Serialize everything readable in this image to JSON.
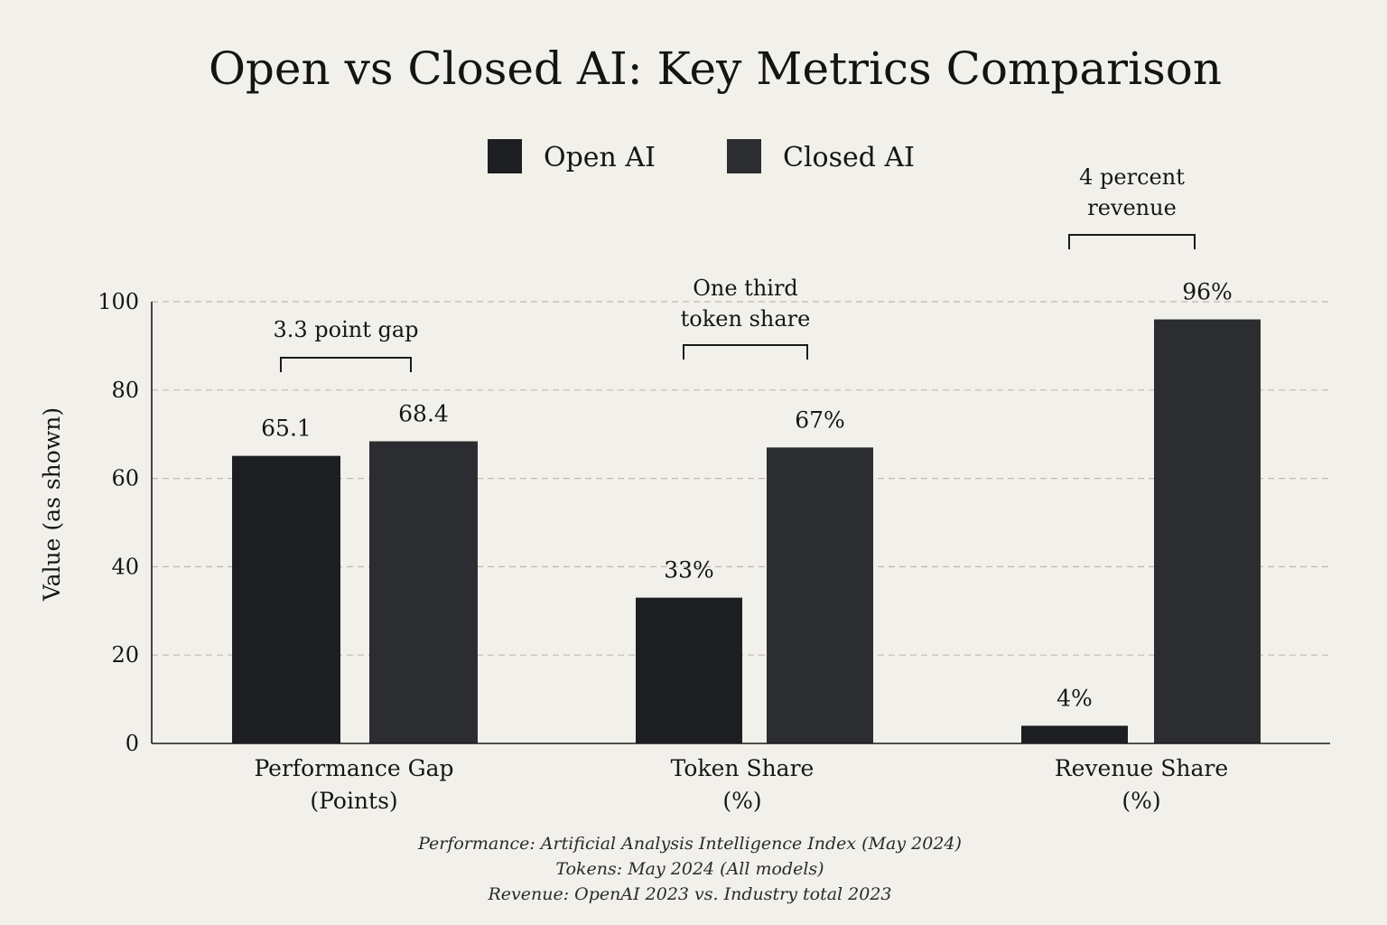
{
  "chart_data": {
    "type": "bar",
    "title": "Open vs Closed AI: Key Metrics Comparison",
    "ylabel": "Value (as shown)",
    "xlabel": "",
    "ylim": [
      0,
      100
    ],
    "yticks": [
      "0",
      "20",
      "40",
      "60",
      "80",
      "100"
    ],
    "grid": true,
    "legend_position": "top-center",
    "categories": [
      [
        "Performance Gap",
        "(Points)"
      ],
      [
        "Token Share",
        "(%)"
      ],
      [
        "Revenue Share",
        "(%)"
      ]
    ],
    "series": [
      {
        "name": "Open AI",
        "values": [
          65.1,
          33,
          4
        ],
        "labels": [
          "65.1",
          "33%",
          "4%"
        ],
        "color": "#1d1e21"
      },
      {
        "name": "Closed AI",
        "values": [
          68.4,
          67,
          96
        ],
        "labels": [
          "68.4",
          "67%",
          "96%"
        ],
        "color": "#2c2d30"
      }
    ],
    "annotations": [
      [
        "3.3 point gap"
      ],
      [
        "One third",
        "token share"
      ],
      [
        "4 percent",
        "revenue"
      ]
    ],
    "footnotes": [
      "Performance: Artificial Analysis Intelligence Index (May 2024)",
      "Tokens: May 2024 (All models)",
      "Revenue: OpenAI 2023 vs. Industry total 2023"
    ]
  }
}
